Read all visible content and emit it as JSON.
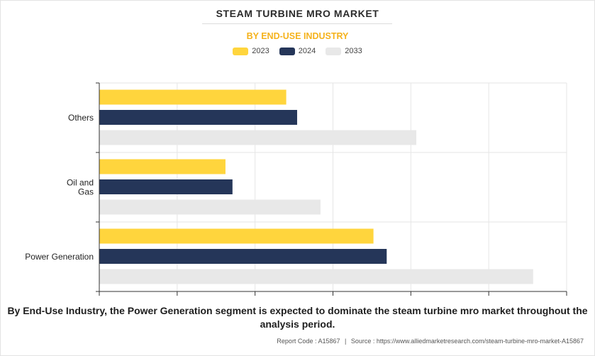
{
  "title": "STEAM TURBINE MRO MARKET",
  "subtitle": "BY END-USE INDUSTRY",
  "colors": {
    "series_2023": "#ffd53d",
    "series_2024": "#253659",
    "series_2033": "#e8e8e8",
    "subtitle": "#f5b21b"
  },
  "chart_data": {
    "type": "bar",
    "orientation": "horizontal",
    "title": "STEAM TURBINE MRO MARKET",
    "subtitle": "BY END-USE INDUSTRY",
    "categories": [
      "Others",
      "Oil and Gas",
      "Power Generation"
    ],
    "category_label_lines": [
      [
        "Others"
      ],
      [
        "Oil and",
        "Gas"
      ],
      [
        "Power Generation"
      ]
    ],
    "series": [
      {
        "name": "2023",
        "values": [
          2.4,
          1.62,
          3.52
        ]
      },
      {
        "name": "2024",
        "values": [
          2.54,
          1.71,
          3.69
        ]
      },
      {
        "name": "2033",
        "values": [
          4.07,
          2.84,
          5.57
        ]
      }
    ],
    "xlim": [
      0,
      6
    ],
    "tick_count": 6,
    "xlabel": "",
    "ylabel": "",
    "grid": true,
    "tick_labels_shown": false,
    "legend_position": "top-center"
  },
  "caption": "By End-Use Industry, the Power Generation segment is expected to dominate the steam turbine mro market throughout the analysis period.",
  "footer": {
    "report_code": "Report Code : A15867",
    "separator": "|",
    "source": "Source : https://www.alliedmarketresearch.com/steam-turbine-mro-market-A15867"
  }
}
